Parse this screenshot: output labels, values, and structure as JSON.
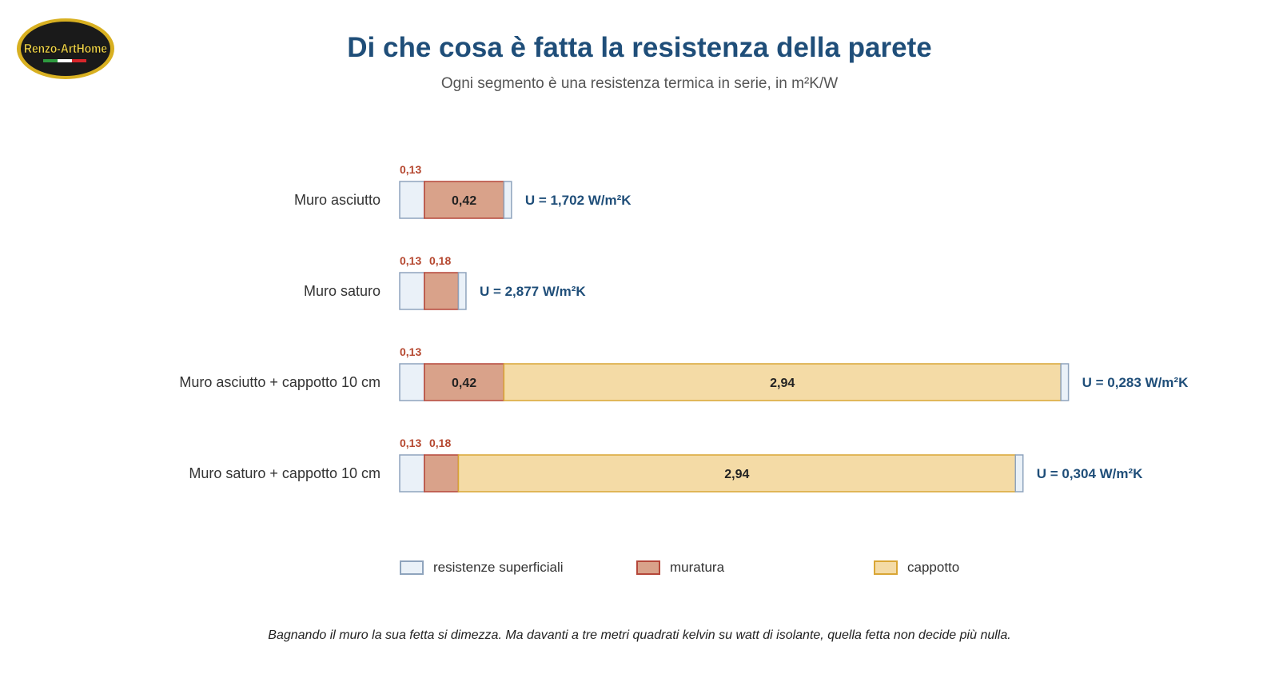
{
  "logo": {
    "text": "Renzo-ArtHome",
    "colors": {
      "gold": "#d8b021",
      "dark": "#1a1a1a",
      "text": "#f2d64a",
      "flag": [
        "#2e9a3f",
        "#ffffff",
        "#d7262b"
      ]
    }
  },
  "header": {
    "title": "Di che cosa è fatta la resistenza della parete",
    "subtitle": "Ogni segmento è una resistenza termica in serie, in m²K/W"
  },
  "chart_data": {
    "type": "bar",
    "orientation": "horizontal",
    "stacked": true,
    "unit": "m²K/W",
    "categories": [
      "Muro asciutto",
      "Muro saturo",
      "Muro asciutto + cappotto 10 cm",
      "Muro saturo + cappotto 10 cm"
    ],
    "segments": [
      [
        {
          "type": "superficiali",
          "value": 0.13,
          "label": "0,13"
        },
        {
          "type": "muratura",
          "value": 0.42,
          "label": "0,42"
        },
        {
          "type": "superficiali",
          "value": 0.04,
          "label": ""
        }
      ],
      [
        {
          "type": "superficiali",
          "value": 0.13,
          "label": "0,13"
        },
        {
          "type": "muratura",
          "value": 0.18,
          "label": "0,18"
        },
        {
          "type": "superficiali",
          "value": 0.04,
          "label": ""
        }
      ],
      [
        {
          "type": "superficiali",
          "value": 0.13,
          "label": "0,13"
        },
        {
          "type": "muratura",
          "value": 0.42,
          "label": "0,42"
        },
        {
          "type": "cappotto",
          "value": 2.94,
          "label": "2,94"
        },
        {
          "type": "superficiali",
          "value": 0.04,
          "label": ""
        }
      ],
      [
        {
          "type": "superficiali",
          "value": 0.13,
          "label": "0,13"
        },
        {
          "type": "muratura",
          "value": 0.18,
          "label": "0,18"
        },
        {
          "type": "cappotto",
          "value": 2.94,
          "label": "2,94"
        },
        {
          "type": "superficiali",
          "value": 0.04,
          "label": ""
        }
      ]
    ],
    "u_values": [
      "U = 1,702 W/m²K",
      "U = 2,877 W/m²K",
      "U = 0,283 W/m²K",
      "U = 0,304 W/m²K"
    ],
    "colors": {
      "superficiali": {
        "fill": "#eaf1f8",
        "stroke": "#8fa4bd"
      },
      "muratura": {
        "fill": "#d9a28a",
        "stroke": "#b5473a"
      },
      "cappotto": {
        "fill": "#f4dba6",
        "stroke": "#d9a635"
      },
      "small_label": "#b5472f",
      "u_label": "#1f4e79",
      "category_label": "#333333",
      "inner_label": "#222222"
    }
  },
  "legend": {
    "position": "bottom",
    "items": [
      {
        "key": "superficiali",
        "label": "resistenze superficiali"
      },
      {
        "key": "muratura",
        "label": "muratura"
      },
      {
        "key": "cappotto",
        "label": "cappotto"
      }
    ]
  },
  "footnote": "Bagnando il muro la sua fetta si dimezza. Ma davanti a tre metri quadrati kelvin su watt di isolante, quella fetta non decide più nulla."
}
